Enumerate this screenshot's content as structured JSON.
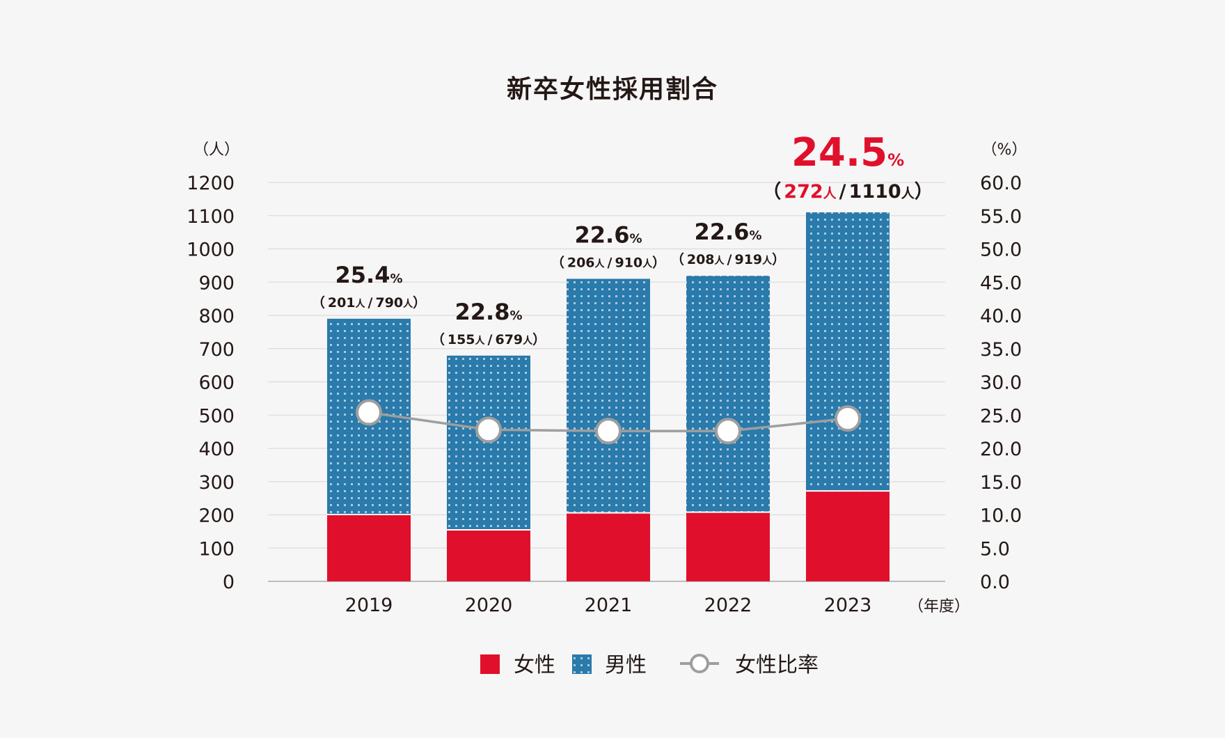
{
  "chart_data": {
    "type": "bar",
    "title": "新卒女性採用割合",
    "y_left_unit": "（人）",
    "y_right_unit": "（%）",
    "x_unit": "（年度）",
    "ylim_left": [
      0,
      1200
    ],
    "ylim_right": [
      0,
      60
    ],
    "y_left_ticks": [
      "0",
      "100",
      "200",
      "300",
      "400",
      "500",
      "600",
      "700",
      "800",
      "900",
      "1000",
      "1100",
      "1200"
    ],
    "y_right_ticks": [
      "0.0",
      "5.0",
      "10.0",
      "15.0",
      "20.0",
      "25.0",
      "30.0",
      "35.0",
      "40.0",
      "45.0",
      "50.0",
      "55.0",
      "60.0"
    ],
    "categories": [
      "2019",
      "2020",
      "2021",
      "2022",
      "2023"
    ],
    "series": [
      {
        "name": "女性",
        "kind": "stacked-bar",
        "color": "#e0102c",
        "values": [
          201,
          155,
          206,
          208,
          272
        ]
      },
      {
        "name": "男性",
        "kind": "stacked-bar",
        "color": "#2a7aab",
        "values": [
          589,
          524,
          704,
          711,
          838
        ]
      },
      {
        "name": "女性比率",
        "kind": "line",
        "color": "#9e9e9e",
        "values": [
          25.4,
          22.8,
          22.6,
          22.6,
          24.5
        ]
      }
    ],
    "totals": [
      790,
      679,
      910,
      919,
      1110
    ],
    "labels": [
      {
        "pct": "25.4",
        "pct_unit": "%",
        "open": "（",
        "women": "201",
        "person": "人",
        "slash": "/",
        "total": "790",
        "close": "）"
      },
      {
        "pct": "22.8",
        "pct_unit": "%",
        "open": "（",
        "women": "155",
        "person": "人",
        "slash": "/",
        "total": "679",
        "close": "）"
      },
      {
        "pct": "22.6",
        "pct_unit": "%",
        "open": "（",
        "women": "206",
        "person": "人",
        "slash": "/",
        "total": "910",
        "close": "）"
      },
      {
        "pct": "22.6",
        "pct_unit": "%",
        "open": "（",
        "women": "208",
        "person": "人",
        "slash": "/",
        "total": "919",
        "close": "）"
      },
      {
        "pct": "24.5",
        "pct_unit": "%",
        "open": "（",
        "women": "272",
        "person": "人",
        "slash": "/",
        "total": "1110",
        "close": "）"
      }
    ],
    "highlight_index": 4,
    "highlight_color": "#e0102c",
    "grid": true,
    "legend_position": "bottom-center"
  }
}
